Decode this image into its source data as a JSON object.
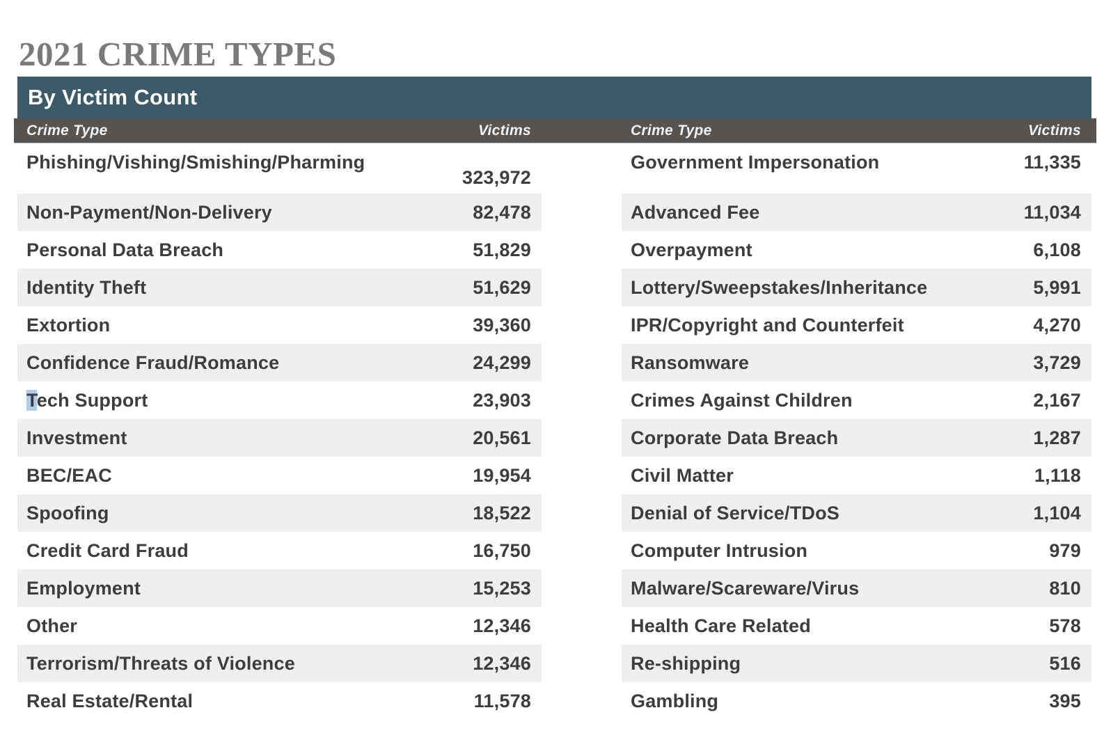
{
  "page": {
    "title": "2021 CRIME TYPES"
  },
  "table": {
    "header": "By Victim Count",
    "columns": {
      "crime_type": "Crime Type",
      "victims": "Victims"
    },
    "left_rows": [
      {
        "label": "Phishing/Vishing/Smishing/Pharming",
        "value": "323,972"
      },
      {
        "label": "Non-Payment/Non-Delivery",
        "value": "82,478"
      },
      {
        "label": "Personal Data Breach",
        "value": "51,829"
      },
      {
        "label": "Identity Theft",
        "value": "51,629"
      },
      {
        "label": "Extortion",
        "value": "39,360"
      },
      {
        "label": "Confidence Fraud/Romance",
        "value": "24,299"
      },
      {
        "label": "Tech Support",
        "value": "23,903",
        "highlight_first": true
      },
      {
        "label": "Investment",
        "value": "20,561"
      },
      {
        "label": "BEC/EAC",
        "value": "19,954"
      },
      {
        "label": "Spoofing",
        "value": "18,522"
      },
      {
        "label": "Credit Card Fraud",
        "value": "16,750"
      },
      {
        "label": "Employment",
        "value": "15,253"
      },
      {
        "label": "Other",
        "value": "12,346"
      },
      {
        "label": "Terrorism/Threats of Violence",
        "value": "12,346"
      },
      {
        "label": "Real Estate/Rental",
        "value": "11,578"
      }
    ],
    "right_rows": [
      {
        "label": "Government Impersonation",
        "value": "11,335"
      },
      {
        "label": "Advanced Fee",
        "value": "11,034"
      },
      {
        "label": "Overpayment",
        "value": "6,108"
      },
      {
        "label": "Lottery/Sweepstakes/Inheritance",
        "value": "5,991"
      },
      {
        "label": "IPR/Copyright and Counterfeit",
        "value": "4,270"
      },
      {
        "label": "Ransomware",
        "value": "3,729"
      },
      {
        "label": "Crimes Against Children",
        "value": "2,167"
      },
      {
        "label": "Corporate Data Breach",
        "value": "1,287"
      },
      {
        "label": "Civil Matter",
        "value": "1,118"
      },
      {
        "label": "Denial of Service/TDoS",
        "value": "1,104"
      },
      {
        "label": "Computer Intrusion",
        "value": "979"
      },
      {
        "label": "Malware/Scareware/Virus",
        "value": "810"
      },
      {
        "label": "Health Care Related",
        "value": "578"
      },
      {
        "label": "Re-shipping",
        "value": "516"
      },
      {
        "label": "Gambling",
        "value": "395"
      }
    ]
  },
  "colors": {
    "teal": "#3d5a68",
    "subheader": "#565350",
    "stripe": "#efefef",
    "row-text": "#3d3d3d",
    "title-color": "#7a7a7a",
    "selection": "#aecbeb"
  }
}
